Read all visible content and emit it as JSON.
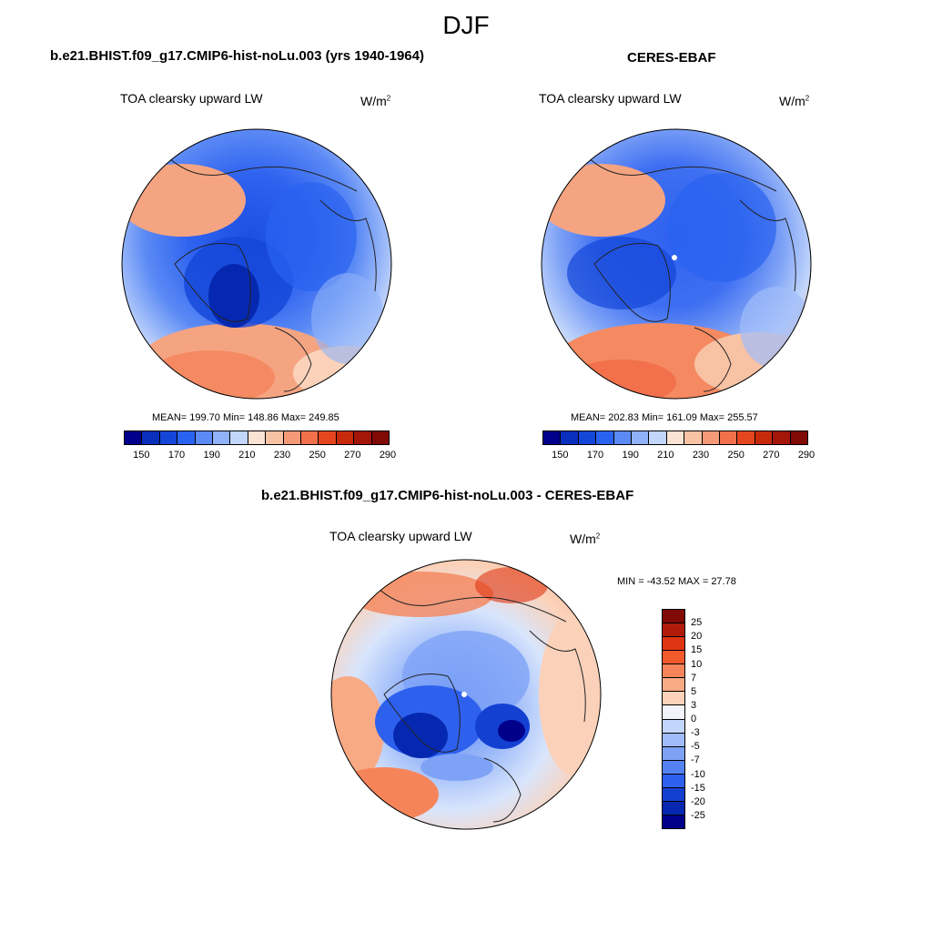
{
  "season": "DJF",
  "variable": "TOA clearsky upward LW",
  "units": "W/m",
  "units_exp": "2",
  "panels": {
    "model": {
      "title": "b.e21.BHIST.f09_g17.CMIP6-hist-noLu.003 (yrs 1940-1964)",
      "stats": "MEAN= 199.70  Min= 148.86  Max= 249.85",
      "mean": 199.7,
      "min": 148.86,
      "max": 249.85
    },
    "obs": {
      "title": "CERES-EBAF",
      "stats": "MEAN= 202.83  Min= 161.09  Max= 255.57",
      "mean": 202.83,
      "min": 161.09,
      "max": 255.57
    },
    "diff": {
      "title": "b.e21.BHIST.f09_g17.CMIP6-hist-noLu.003 - CERES-EBAF",
      "stats": "MIN = -43.52 MAX =  27.78",
      "min": -43.52,
      "max": 27.78
    }
  },
  "colorbar_abs": {
    "labels": [
      "150",
      "170",
      "190",
      "210",
      "230",
      "250",
      "270",
      "290"
    ],
    "colors": [
      "#00008b",
      "#0a2fbd",
      "#1446d8",
      "#2a63f0",
      "#5b8af5",
      "#8fb2f8",
      "#c2d6fb",
      "#fbe3d4",
      "#f8c2a4",
      "#f59a77",
      "#f2714c",
      "#e6461f",
      "#c72a0b",
      "#a3160a",
      "#7f0a06"
    ]
  },
  "colorbar_diff": {
    "labels": [
      "25",
      "20",
      "15",
      "10",
      "7",
      "5",
      "3",
      "0",
      "-3",
      "-5",
      "-7",
      "-10",
      "-15",
      "-20",
      "-25"
    ],
    "colors": [
      "#7f0a06",
      "#b01b0a",
      "#e03512",
      "#f25a2c",
      "#f5845a",
      "#f8aa85",
      "#fbd2b9",
      "#f2f4fb",
      "#c2d6fb",
      "#9fbcf9",
      "#7ea2f6",
      "#5582f3",
      "#2e60ee",
      "#1440d2",
      "#0628b0",
      "#00008b"
    ]
  }
}
